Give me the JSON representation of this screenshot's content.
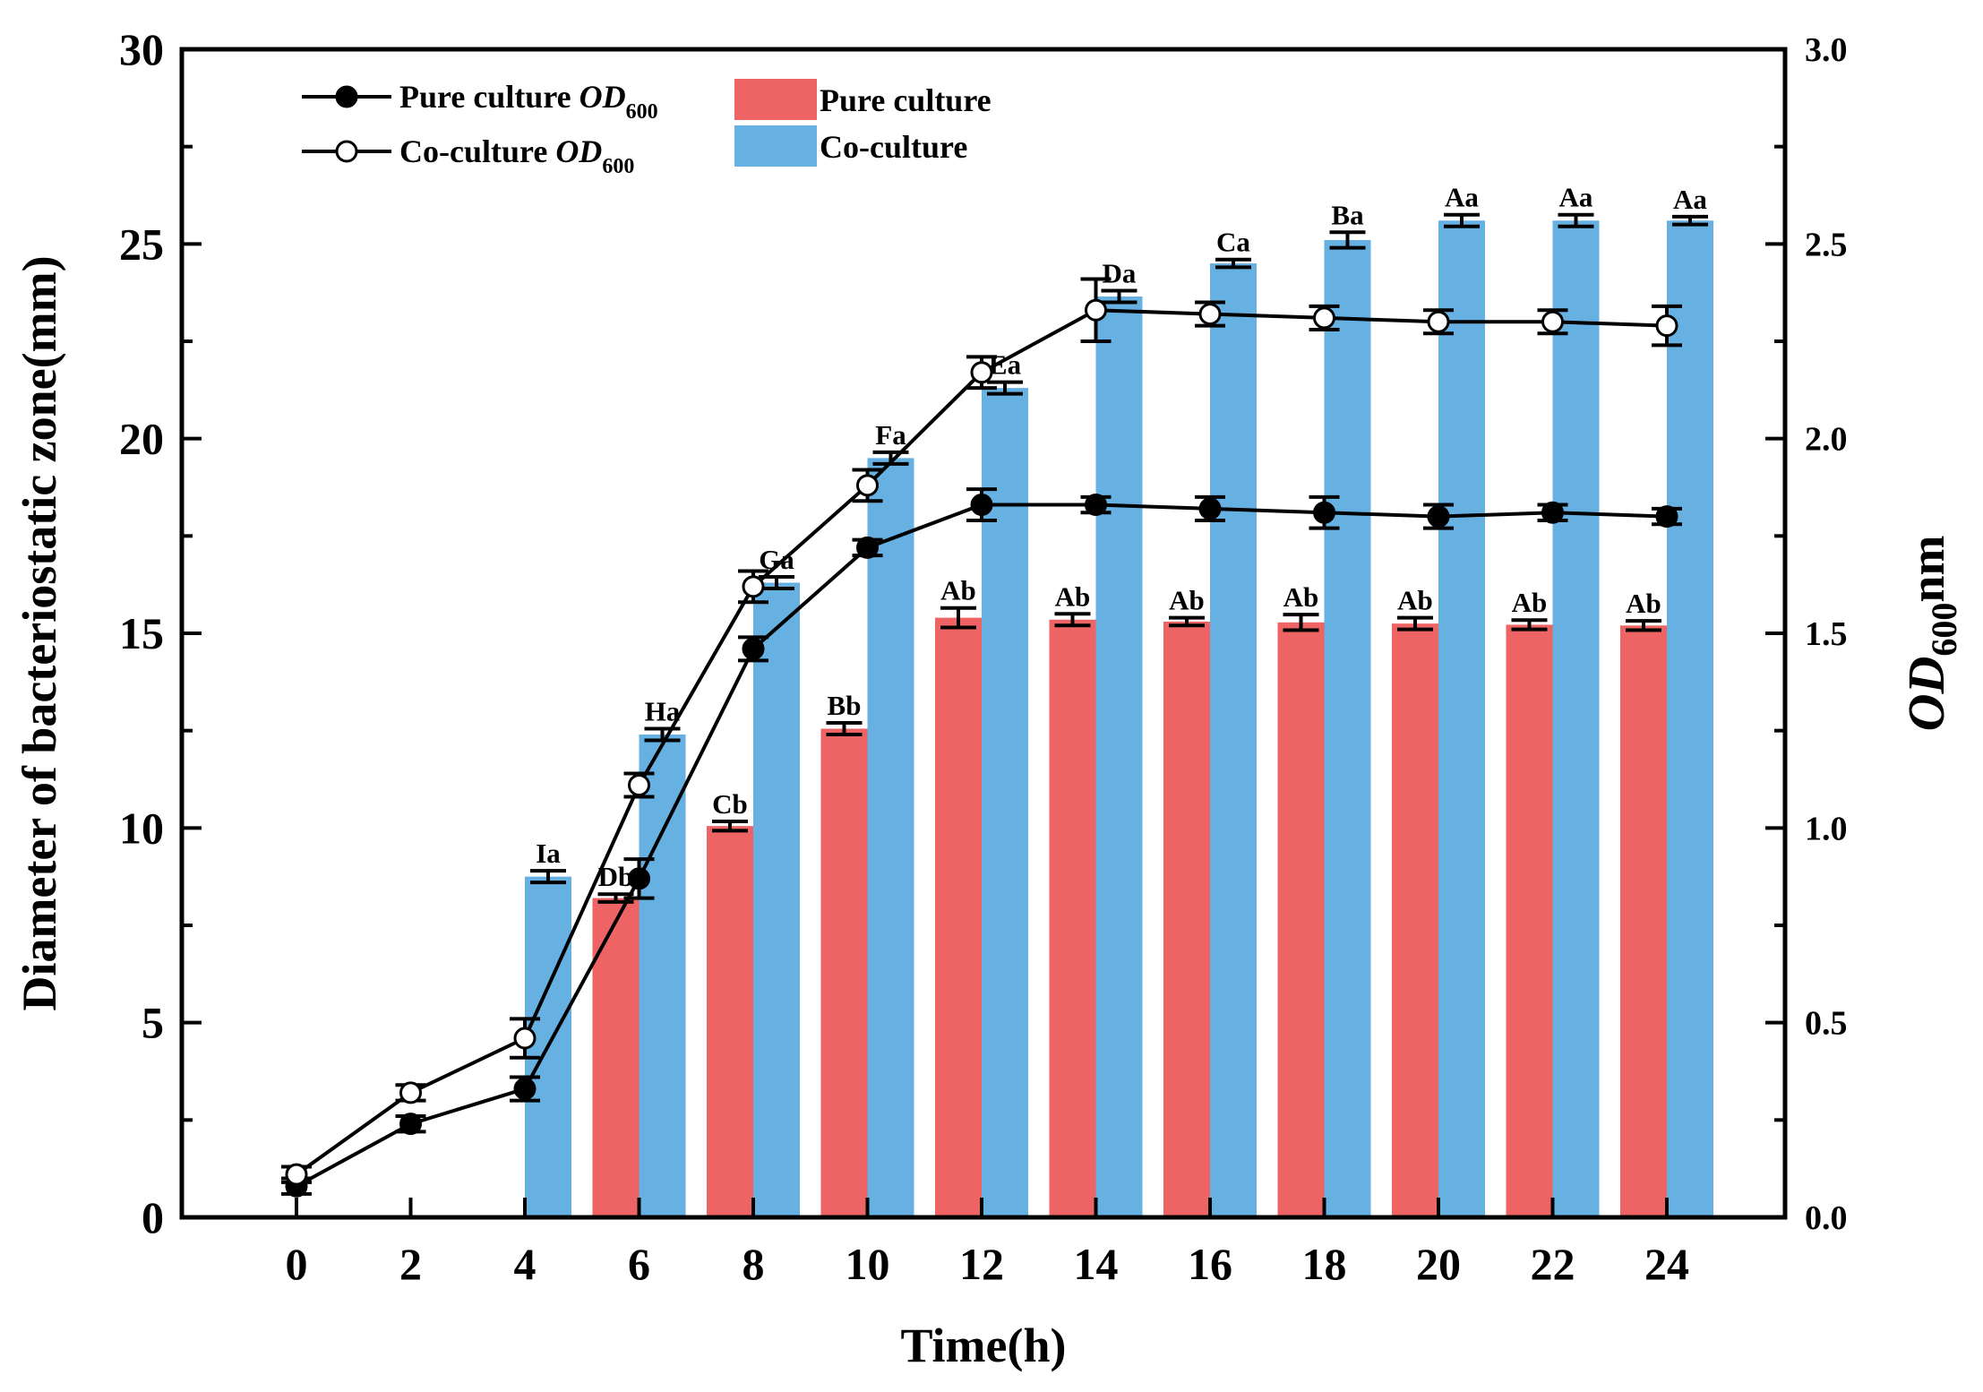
{
  "chart_data": {
    "type": "bar+line",
    "xlabel": "Time(h)",
    "ylabel_left": "Diameter of bacteriostatic zone(mm)",
    "ylabel_right": "OD",
    "ylabel_right_sub": "600",
    "ylabel_right_suffix": "nm",
    "x_ticks": [
      "0",
      "2",
      "4",
      "6",
      "8",
      "10",
      "12",
      "14",
      "16",
      "18",
      "20",
      "22",
      "24"
    ],
    "y_left_ticks": [
      "0",
      "5",
      "10",
      "15",
      "20",
      "25",
      "30"
    ],
    "y_right_ticks": [
      "0.0",
      "0.5",
      "1.0",
      "1.5",
      "2.0",
      "2.5",
      "3.0"
    ],
    "ylim_left": [
      0,
      30
    ],
    "ylim_right": [
      0,
      3.0
    ],
    "bars": [
      {
        "name": "Pure culture",
        "color": "#ee6464",
        "x": [
          0,
          2,
          4,
          6,
          8,
          10,
          12,
          14,
          16,
          18,
          20,
          22,
          24
        ],
        "values": [
          null,
          null,
          null,
          8.2,
          10.05,
          12.55,
          15.4,
          15.35,
          15.3,
          15.28,
          15.25,
          15.22,
          15.2
        ],
        "errors": [
          null,
          null,
          null,
          0.1,
          0.12,
          0.15,
          0.25,
          0.15,
          0.1,
          0.2,
          0.15,
          0.12,
          0.12
        ],
        "labels": [
          "",
          "",
          "",
          "Db",
          "Cb",
          "Bb",
          "Ab",
          "Ab",
          "Ab",
          "Ab",
          "Ab",
          "Ab",
          "Ab"
        ]
      },
      {
        "name": "Co-culture",
        "color": "#66b0e2",
        "x": [
          0,
          2,
          4,
          6,
          8,
          10,
          12,
          14,
          16,
          18,
          20,
          22,
          24
        ],
        "values": [
          null,
          null,
          8.75,
          12.4,
          16.3,
          19.5,
          21.3,
          23.65,
          24.5,
          25.1,
          25.6,
          25.6,
          25.6
        ],
        "errors": [
          null,
          null,
          0.15,
          0.15,
          0.15,
          0.15,
          0.15,
          0.15,
          0.1,
          0.2,
          0.15,
          0.15,
          0.1
        ],
        "labels": [
          "",
          "",
          "Ia",
          "Ha",
          "Ga",
          "Fa",
          "Ea",
          "Da",
          "Ca",
          "Ba",
          "Aa",
          "Aa",
          "Aa"
        ]
      }
    ],
    "lines": [
      {
        "name": "Pure culture",
        "name_italic": "OD",
        "name_sub": "600",
        "marker": "filled-circle",
        "x": [
          0,
          2,
          4,
          6,
          8,
          10,
          12,
          14,
          16,
          18,
          20,
          22,
          24
        ],
        "values": [
          0.08,
          0.24,
          0.33,
          0.87,
          1.46,
          1.72,
          1.83,
          1.83,
          1.82,
          1.81,
          1.8,
          1.81,
          1.8
        ],
        "errors": [
          0.02,
          0.02,
          0.03,
          0.05,
          0.03,
          0.02,
          0.04,
          0.02,
          0.03,
          0.04,
          0.03,
          0.02,
          0.02
        ]
      },
      {
        "name": "Co-culture",
        "name_italic": "OD",
        "name_sub": "600",
        "marker": "open-circle",
        "x": [
          0,
          2,
          4,
          6,
          8,
          10,
          12,
          14,
          16,
          18,
          20,
          22,
          24
        ],
        "values": [
          0.11,
          0.32,
          0.46,
          1.11,
          1.62,
          1.88,
          2.17,
          2.33,
          2.32,
          2.31,
          2.3,
          2.3,
          2.29
        ],
        "errors": [
          0.02,
          0.02,
          0.05,
          0.03,
          0.04,
          0.04,
          0.04,
          0.08,
          0.03,
          0.03,
          0.03,
          0.03,
          0.05
        ]
      }
    ],
    "legend": {
      "position": "top-left",
      "entries": [
        {
          "label": "Pure culture",
          "italic": "OD",
          "sub": "600",
          "kind": "line-filled"
        },
        {
          "label": "Co-culture",
          "italic": "OD",
          "sub": "600",
          "kind": "line-open"
        },
        {
          "label": "Pure culture",
          "kind": "bar",
          "color": "#ee6464"
        },
        {
          "label": "Co-culture",
          "kind": "bar",
          "color": "#66b0e2"
        }
      ]
    }
  }
}
